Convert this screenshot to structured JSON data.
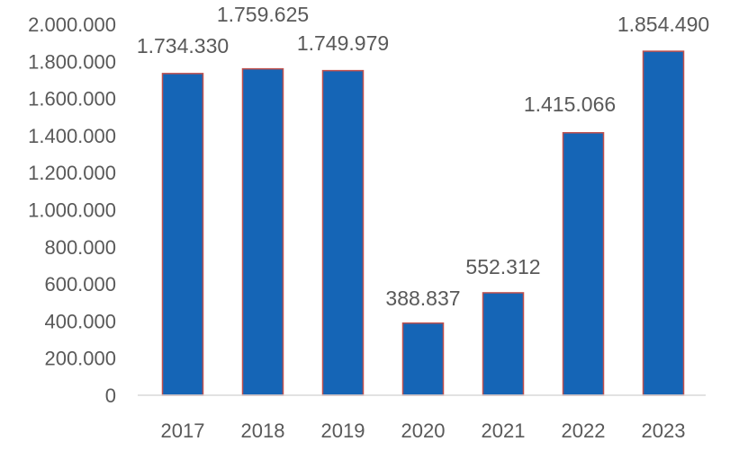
{
  "chart_data": {
    "type": "bar",
    "categories": [
      "2017",
      "2018",
      "2019",
      "2020",
      "2021",
      "2022",
      "2023"
    ],
    "values": [
      1734330,
      1759625,
      1749979,
      388837,
      552312,
      1415066,
      1854490
    ],
    "data_labels": [
      "1.734.330",
      "1.759.625",
      "1.749.979",
      "388.837",
      "552.312",
      "1.415.066",
      "1.854.490"
    ],
    "y_ticks": [
      0,
      200000,
      400000,
      600000,
      800000,
      1000000,
      1200000,
      1400000,
      1600000,
      1800000,
      2000000
    ],
    "y_tick_labels": [
      "0",
      "200.000",
      "400.000",
      "600.000",
      "800.000",
      "1.000.000",
      "1.200.000",
      "1.400.000",
      "1.600.000",
      "1.800.000",
      "2.000.000"
    ],
    "ylim": [
      0,
      2000000
    ],
    "title": "",
    "xlabel": "",
    "ylabel": "",
    "grid": false,
    "legend": "none",
    "colors": {
      "bar_fill": "#1565b6",
      "bar_edge": "#c0504d",
      "axis": "#d9d9d9",
      "text": "#595959"
    }
  }
}
